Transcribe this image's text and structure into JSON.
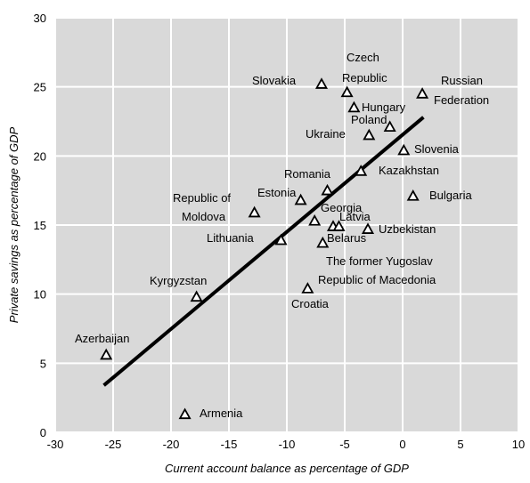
{
  "chart_data": {
    "type": "scatter",
    "title": "",
    "xlabel": "Current account balance as percentage of GDP",
    "ylabel": "Private savings as percentage of GDP",
    "xlim": [
      -30,
      10
    ],
    "ylim": [
      0,
      30
    ],
    "x_ticks": [
      "-30",
      "-25",
      "-20",
      "-15",
      "-10",
      "-5",
      "0",
      "5",
      "10"
    ],
    "y_ticks": [
      "0",
      "5",
      "10",
      "15",
      "20",
      "25",
      "30"
    ],
    "grid": true,
    "plot_background": "#d9d9d9",
    "grid_color": "#ffffff",
    "marker": "open-triangle",
    "trendline": {
      "x": [
        -25.8,
        1.8
      ],
      "y": [
        3.4,
        22.8
      ]
    },
    "points": [
      {
        "label": "Azerbaijan",
        "x": -25.6,
        "y": 5.6
      },
      {
        "label": "Armenia",
        "x": -18.8,
        "y": 1.3
      },
      {
        "label": "Kyrgyzstan",
        "x": -17.8,
        "y": 9.8
      },
      {
        "label": "Republic of Moldova",
        "x": -12.8,
        "y": 15.9
      },
      {
        "label": "Lithuania",
        "x": -10.5,
        "y": 13.9
      },
      {
        "label": "Estonia",
        "x": -8.8,
        "y": 16.8
      },
      {
        "label": "Croatia",
        "x": -8.2,
        "y": 10.4
      },
      {
        "label": "Georgia",
        "x": -7.6,
        "y": 15.3
      },
      {
        "label": "Slovakia",
        "x": -7.0,
        "y": 25.2
      },
      {
        "label": "Belarus",
        "x": -6.9,
        "y": 13.7
      },
      {
        "label": "Romania",
        "x": -6.5,
        "y": 17.5
      },
      {
        "label": "Latvia",
        "x": -6.0,
        "y": 14.9
      },
      {
        "label": "Republic of Macedonia",
        "x": -5.5,
        "y": 14.9
      },
      {
        "label": "Czech Republic",
        "x": -4.8,
        "y": 24.6
      },
      {
        "label": "Hungary",
        "x": -4.2,
        "y": 23.5
      },
      {
        "label": "Kazakhstan",
        "x": -3.6,
        "y": 18.9
      },
      {
        "label": "Uzbekistan",
        "x": -3.0,
        "y": 14.7
      },
      {
        "label": "Ukraine",
        "x": -2.9,
        "y": 21.5
      },
      {
        "label": "Poland",
        "x": -1.1,
        "y": 22.1
      },
      {
        "label": "Slovenia",
        "x": 0.1,
        "y": 20.4
      },
      {
        "label": "Bulgaria",
        "x": 0.9,
        "y": 17.1
      },
      {
        "label": "Russian Federation",
        "x": 1.7,
        "y": 24.5
      }
    ],
    "labels": [
      {
        "text": "Azerbaijan"
      },
      {
        "text": "Armenia"
      },
      {
        "text": "Kyrgyzstan"
      },
      {
        "text": "Republic of"
      },
      {
        "text": "Moldova"
      },
      {
        "text": "Lithuania"
      },
      {
        "text": "Estonia"
      },
      {
        "text": "Croatia"
      },
      {
        "text": "Georgia"
      },
      {
        "text": "Slovakia"
      },
      {
        "text": "Belarus"
      },
      {
        "text": "Romania"
      },
      {
        "text": "Latvia"
      },
      {
        "text": "The former Yugoslav"
      },
      {
        "text": "Republic of Macedonia"
      },
      {
        "text": "Czech"
      },
      {
        "text": "Republic"
      },
      {
        "text": "Hungary"
      },
      {
        "text": "Kazakhstan"
      },
      {
        "text": "Uzbekistan"
      },
      {
        "text": "Ukraine"
      },
      {
        "text": "Poland"
      },
      {
        "text": "Slovenia"
      },
      {
        "text": "Bulgaria"
      },
      {
        "text": "Russian"
      },
      {
        "text": "Federation"
      }
    ]
  }
}
